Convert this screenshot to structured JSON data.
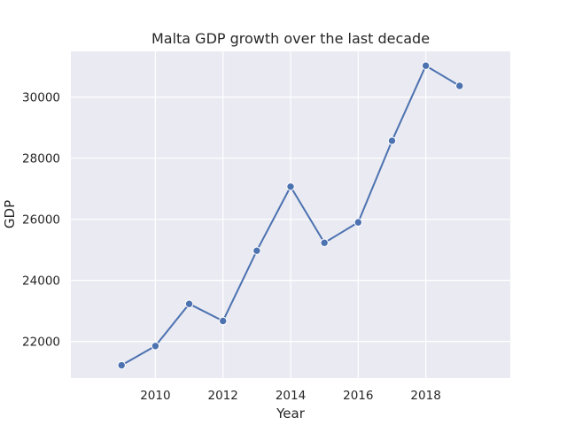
{
  "chart_data": {
    "type": "line",
    "title": "Malta GDP growth over the last decade",
    "xlabel": "Year",
    "ylabel": "GDP",
    "x": [
      2009,
      2010,
      2011,
      2012,
      2013,
      2014,
      2015,
      2016,
      2017,
      2018,
      2019
    ],
    "series": [
      {
        "values": [
          21220,
          21850,
          23230,
          22670,
          24970,
          27070,
          25230,
          25900,
          28570,
          31030,
          30370
        ]
      }
    ],
    "xlim": [
      2007.5,
      2020.5
    ],
    "ylim": [
      20800,
      31500
    ],
    "xticks": [
      "2010",
      "2012",
      "2014",
      "2016",
      "2018"
    ],
    "yticks": [
      "22000",
      "24000",
      "26000",
      "28000",
      "30000"
    ],
    "grid": true,
    "legend": "none",
    "colors": {
      "line": "#4c72b0",
      "plot_background": "#eaeaf2",
      "grid": "#ffffff",
      "text": "#262626"
    },
    "marker": "circle"
  }
}
